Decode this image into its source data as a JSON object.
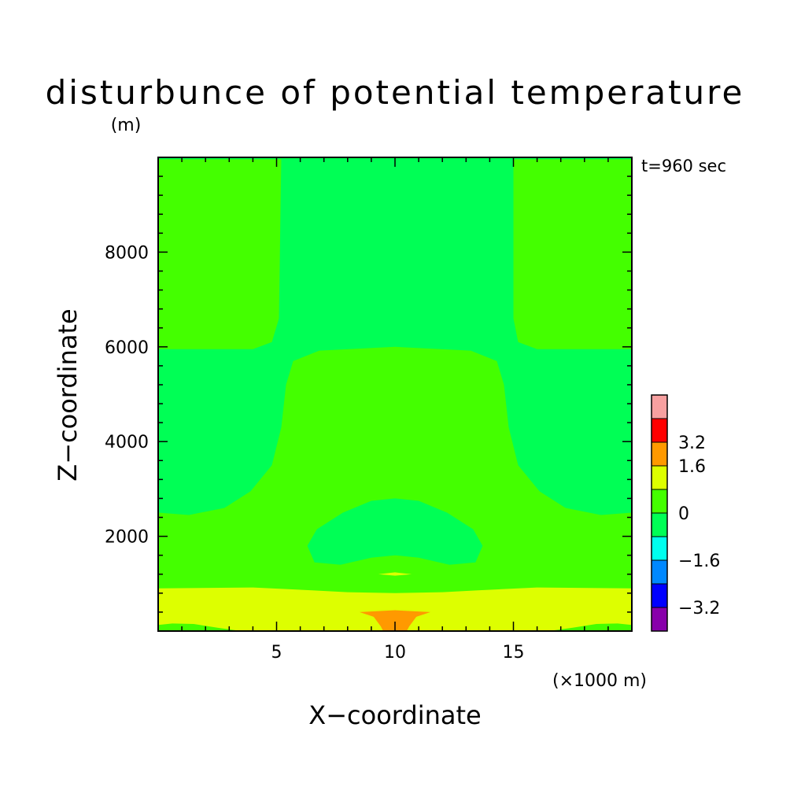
{
  "chart_data": {
    "type": "heatmap",
    "title": "disturbunce of potential temperature",
    "ylabel_unit": "(m)",
    "annotation": "t=960 sec",
    "xlabel": "X−coordinate",
    "xunit": "(×1000 m)",
    "ylabel": "Z−coordinate",
    "xlim": [
      0,
      20
    ],
    "ylim": [
      0,
      10000
    ],
    "x_ticks": [
      {
        "value": 5,
        "label": "5"
      },
      {
        "value": 10,
        "label": "10"
      },
      {
        "value": 15,
        "label": "15"
      }
    ],
    "y_ticks": [
      {
        "value": 2000,
        "label": "2000"
      },
      {
        "value": 4000,
        "label": "4000"
      },
      {
        "value": 6000,
        "label": "6000"
      },
      {
        "value": 8000,
        "label": "8000"
      }
    ],
    "colorbar": {
      "levels": [
        {
          "color": "#f7a0a0"
        },
        {
          "color": "#ff0000"
        },
        {
          "color": "#ff9900"
        },
        {
          "color": "#ddff00"
        },
        {
          "color": "#44ff00"
        },
        {
          "color": "#00ff55"
        },
        {
          "color": "#00ffee"
        },
        {
          "color": "#0088ff"
        },
        {
          "color": "#0000ff"
        },
        {
          "color": "#8800aa"
        }
      ],
      "labels": [
        {
          "text": "3.2",
          "boundary": 2
        },
        {
          "text": "1.6",
          "boundary": 3
        },
        {
          "text": "0",
          "boundary": 5
        },
        {
          "text": "−1.6",
          "boundary": 7
        },
        {
          "text": "−3.2",
          "boundary": 9
        }
      ]
    },
    "regions": [
      {
        "name": "background-0-to-0.8",
        "color": "#44ff00",
        "polygon": [
          [
            0,
            0
          ],
          [
            20,
            0
          ],
          [
            20,
            10000
          ],
          [
            0,
            10000
          ]
        ]
      },
      {
        "name": "core-region",
        "color": "#00ff55",
        "polygon": [
          [
            5.2,
            10000
          ],
          [
            15,
            10000
          ],
          [
            15,
            6600
          ],
          [
            15.2,
            6100
          ],
          [
            16,
            5950
          ],
          [
            20,
            5950
          ],
          [
            20,
            2500
          ],
          [
            18.7,
            2450
          ],
          [
            17.2,
            2600
          ],
          [
            16.1,
            2950
          ],
          [
            15.2,
            3500
          ],
          [
            14.8,
            4300
          ],
          [
            14.6,
            5200
          ],
          [
            14.3,
            5700
          ],
          [
            13.2,
            5920
          ],
          [
            10,
            6000
          ],
          [
            6.8,
            5920
          ],
          [
            5.7,
            5700
          ],
          [
            5.4,
            5200
          ],
          [
            5.2,
            4300
          ],
          [
            4.8,
            3500
          ],
          [
            3.9,
            2950
          ],
          [
            2.8,
            2600
          ],
          [
            1.3,
            2450
          ],
          [
            0,
            2500
          ],
          [
            0,
            5950
          ],
          [
            4,
            5950
          ],
          [
            4.8,
            6100
          ],
          [
            5.1,
            6600
          ]
        ]
      },
      {
        "name": "low-cell-region",
        "color": "#00ff55",
        "polygon": [
          [
            6.3,
            1800
          ],
          [
            6.7,
            2150
          ],
          [
            7.8,
            2500
          ],
          [
            9,
            2750
          ],
          [
            10,
            2800
          ],
          [
            11,
            2750
          ],
          [
            12.2,
            2500
          ],
          [
            13.3,
            2150
          ],
          [
            13.7,
            1800
          ],
          [
            13.4,
            1450
          ],
          [
            12.3,
            1400
          ],
          [
            11,
            1550
          ],
          [
            10,
            1600
          ],
          [
            9,
            1550
          ],
          [
            7.7,
            1400
          ],
          [
            6.6,
            1450
          ]
        ]
      },
      {
        "name": "thin-warm-streak",
        "color": "#ddff00",
        "polygon": [
          [
            9.3,
            1200
          ],
          [
            10,
            1240
          ],
          [
            10.7,
            1200
          ],
          [
            10,
            1170
          ]
        ]
      },
      {
        "name": "warm-surface-layer",
        "color": "#ddff00",
        "polygon": [
          [
            0,
            0
          ],
          [
            20,
            0
          ],
          [
            20,
            900
          ],
          [
            16,
            920
          ],
          [
            13.5,
            860
          ],
          [
            12,
            820
          ],
          [
            10,
            800
          ],
          [
            8,
            820
          ],
          [
            6.5,
            860
          ],
          [
            4,
            920
          ],
          [
            0,
            900
          ]
        ]
      },
      {
        "name": "surface-strip-left",
        "color": "#44ff00",
        "polygon": [
          [
            0,
            0
          ],
          [
            3.5,
            0
          ],
          [
            2.5,
            70
          ],
          [
            1.5,
            150
          ],
          [
            0.6,
            160
          ],
          [
            0,
            130
          ]
        ]
      },
      {
        "name": "surface-strip-right",
        "color": "#44ff00",
        "polygon": [
          [
            16.5,
            0
          ],
          [
            20,
            0
          ],
          [
            20,
            130
          ],
          [
            19.4,
            160
          ],
          [
            18.5,
            150
          ],
          [
            17.5,
            70
          ]
        ]
      },
      {
        "name": "hot-plume",
        "color": "#ff9900",
        "polygon": [
          [
            8.5,
            400
          ],
          [
            10,
            440
          ],
          [
            11.5,
            400
          ],
          [
            10.9,
            300
          ],
          [
            10.6,
            100
          ],
          [
            10.5,
            0
          ],
          [
            9.5,
            0
          ],
          [
            9.4,
            100
          ],
          [
            9.1,
            300
          ]
        ]
      },
      {
        "name": "top-edge-strip",
        "color": "#00ff55",
        "polygon": [
          [
            0,
            10000
          ],
          [
            20,
            10000
          ],
          [
            20,
            9960
          ],
          [
            0,
            9960
          ]
        ]
      }
    ]
  }
}
